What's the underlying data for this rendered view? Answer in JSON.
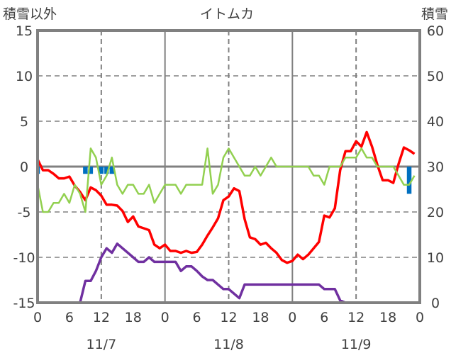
{
  "chart_data": {
    "type": "line",
    "title": "イトムカ",
    "ylabel_left": "積雪以外",
    "ylabel_right": "積雪",
    "ylim_left": [
      -15,
      15
    ],
    "ylim_right": [
      0,
      60
    ],
    "yticks_left": [
      "15",
      "10",
      "5",
      "0",
      "-5",
      "-10",
      "-15"
    ],
    "yticks_right": [
      "60",
      "50",
      "40",
      "30",
      "20",
      "10",
      "0"
    ],
    "x_hours_total": 72,
    "xtick_labels": [
      "0",
      "6",
      "12",
      "18",
      "0",
      "6",
      "12",
      "18",
      "0",
      "6",
      "12",
      "18",
      "0"
    ],
    "date_labels": [
      {
        "hour": 12,
        "label": "11/7"
      },
      {
        "hour": 36,
        "label": "11/8"
      },
      {
        "hour": 60,
        "label": "11/9"
      }
    ],
    "grid": true,
    "colors": {
      "red": "#ff0000",
      "green": "#92d050",
      "purple": "#7030a0",
      "blue": "#0070c0",
      "axis": "#808080"
    },
    "series": [
      {
        "name": "red",
        "axis": "left",
        "color": "#ff0000",
        "values": [
          0.8,
          -0.4,
          -0.4,
          -0.8,
          -1.3,
          -1.3,
          -1.1,
          -2.1,
          -2.8,
          -3.7,
          -2.3,
          -2.6,
          -3.2,
          -4.2,
          -4.2,
          -4.3,
          -4.9,
          -6.1,
          -5.5,
          -6.6,
          -6.8,
          -7.0,
          -8.6,
          -9.0,
          -8.6,
          -9.3,
          -9.3,
          -9.5,
          -9.3,
          -9.5,
          -9.4,
          -8.6,
          -7.6,
          -6.7,
          -5.7,
          -3.7,
          -3.3,
          -2.4,
          -2.7,
          -5.8,
          -7.8,
          -8.0,
          -8.6,
          -8.4,
          -9.0,
          -9.5,
          -10.3,
          -10.6,
          -10.4,
          -9.7,
          -10.2,
          -9.7,
          -9.0,
          -8.3,
          -5.4,
          -5.6,
          -4.6,
          -0.4,
          1.7,
          1.7,
          2.8,
          2.2,
          3.8,
          2.2,
          0.2,
          -1.5,
          -1.5,
          -1.8,
          0.3,
          2.1,
          1.8,
          1.4
        ]
      },
      {
        "name": "green",
        "axis": "left",
        "color": "#92d050",
        "values": [
          -2,
          -5,
          -5,
          -4,
          -4,
          -3,
          -4,
          -2,
          -3,
          -5,
          2,
          1,
          -2,
          -1,
          1,
          -2,
          -3,
          -2,
          -2,
          -3,
          -3,
          -2,
          -4,
          -3,
          -2,
          -2,
          -2,
          -3,
          -2,
          -2,
          -2,
          -2,
          2,
          -3,
          -2,
          1,
          2,
          1,
          0,
          -1,
          -1,
          0,
          -1,
          0,
          1,
          0,
          0,
          0,
          0,
          0,
          0,
          0,
          -1,
          -1,
          -2,
          0,
          0,
          0,
          1,
          1,
          1,
          2,
          1,
          1,
          0,
          0,
          0,
          0,
          -1,
          -2,
          -2,
          -1
        ]
      },
      {
        "name": "purple",
        "axis": "right",
        "color": "#7030a0",
        "values": [
          0,
          0,
          0,
          0,
          0,
          0,
          0,
          0,
          0,
          4.8,
          4.8,
          7,
          10,
          12,
          11,
          13,
          12,
          11,
          10,
          9,
          9,
          10,
          9,
          9,
          9,
          9,
          9,
          7,
          8,
          8,
          7,
          5.8,
          5,
          5,
          4,
          3,
          3,
          2,
          1,
          4,
          4,
          4,
          4,
          4,
          4,
          4,
          4,
          4,
          4,
          4,
          4,
          4,
          4,
          4,
          3,
          3,
          3,
          0.5,
          0,
          0,
          0,
          0,
          0,
          0,
          0,
          0,
          0,
          0,
          0,
          0,
          0,
          0
        ]
      },
      {
        "name": "blue",
        "axis": "left",
        "type": "bar",
        "color": "#0070c0",
        "bars": [
          {
            "hour": 0,
            "value": -0.8
          },
          {
            "hour": 9,
            "value": -0.8
          },
          {
            "hour": 10,
            "value": -0.8
          },
          {
            "hour": 12,
            "value": -0.8
          },
          {
            "hour": 13,
            "value": -0.8
          },
          {
            "hour": 14,
            "value": -0.8
          },
          {
            "hour": 70,
            "value": -3.0
          }
        ]
      }
    ]
  }
}
